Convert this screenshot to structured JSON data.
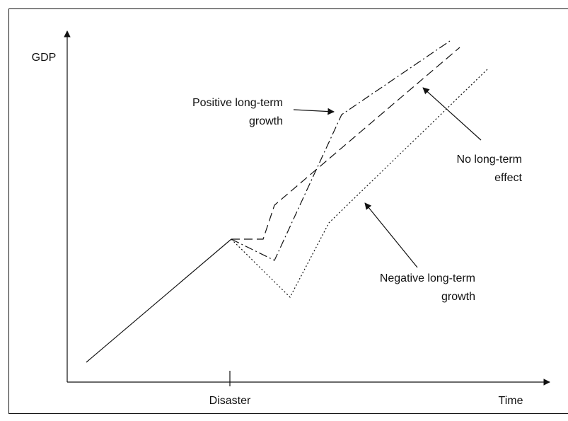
{
  "axes": {
    "y_label": "GDP",
    "x_label": "Time",
    "x_marker": "Disaster"
  },
  "annotations": [
    {
      "lines": [
        "Positive long-term",
        "growth"
      ]
    },
    {
      "lines": [
        "No long-term",
        "effect"
      ]
    },
    {
      "lines": [
        "Negative long-term",
        "growth"
      ]
    }
  ]
}
